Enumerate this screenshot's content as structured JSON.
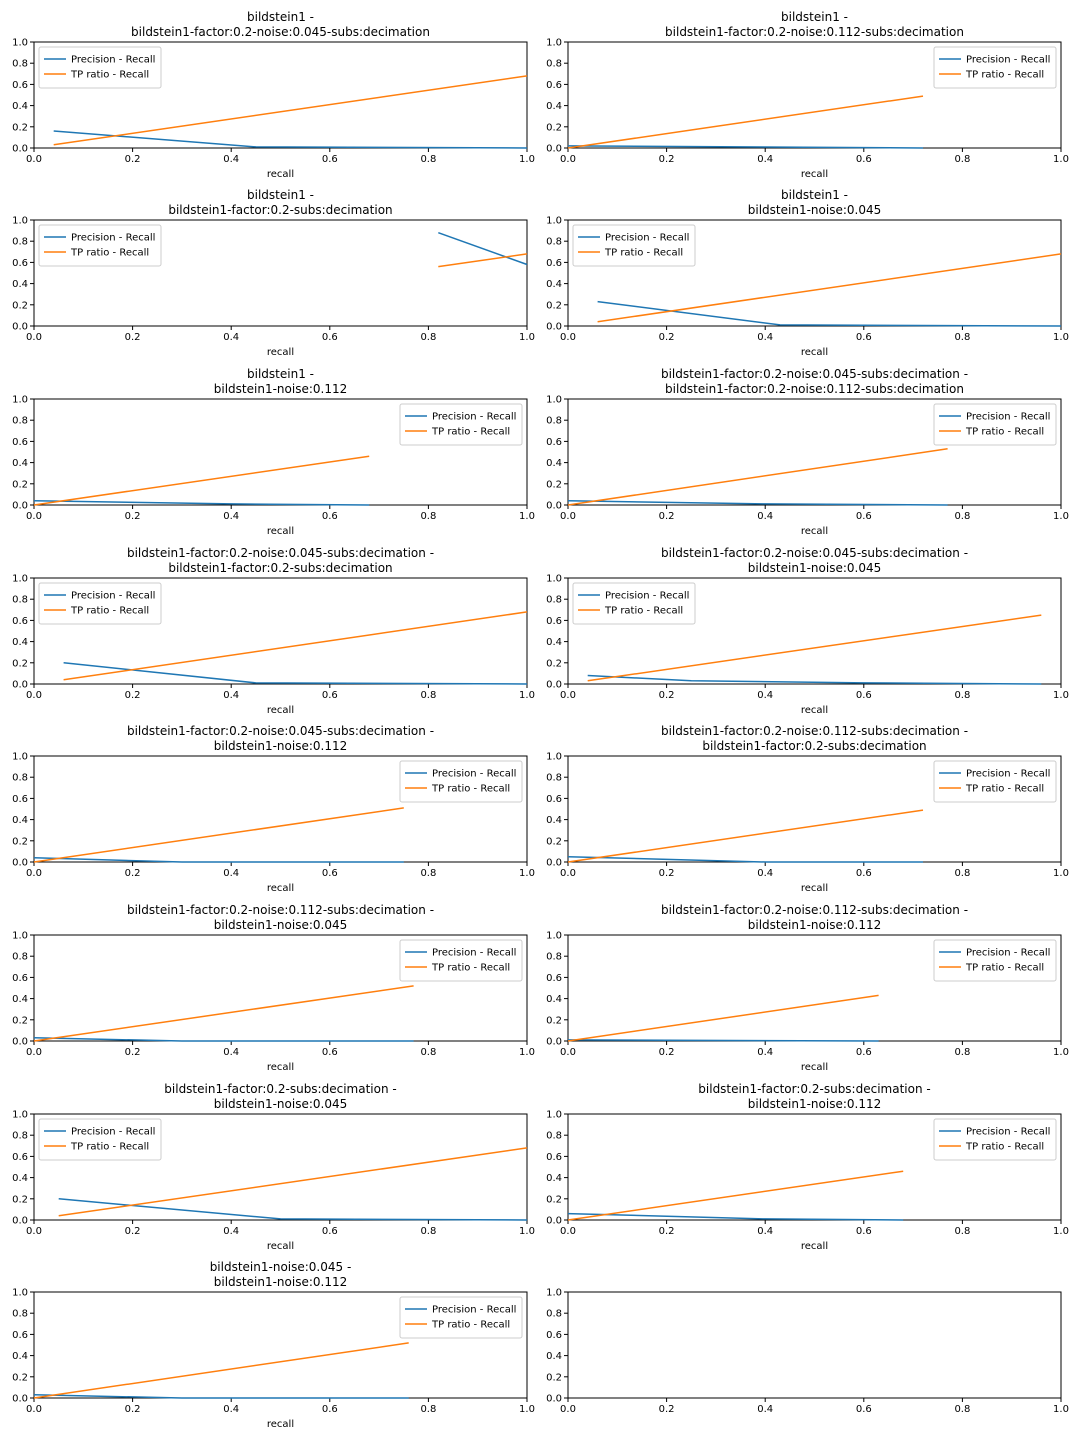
{
  "chart_data": [
    {
      "type": "line",
      "title": [
        "bildstein1 -",
        "bildstein1-factor:0.2-noise:0.045-subs:decimation"
      ],
      "xlabel": "recall",
      "xlim": [
        0,
        1
      ],
      "ylim": [
        0,
        1
      ],
      "xticks": [
        "0.0",
        "0.2",
        "0.4",
        "0.6",
        "0.8",
        "1.0"
      ],
      "yticks": [
        "0.0",
        "0.2",
        "0.4",
        "0.6",
        "0.8",
        "1.0"
      ],
      "legend_loc": "upper-left",
      "series": [
        {
          "name": "Precision - Recall",
          "color": "#1f77b4",
          "points": [
            [
              0.04,
              0.16
            ],
            [
              0.45,
              0.01
            ],
            [
              1.0,
              0.0
            ]
          ]
        },
        {
          "name": "TP ratio - Recall",
          "color": "#ff7f0e",
          "points": [
            [
              0.04,
              0.03
            ],
            [
              1.0,
              0.68
            ]
          ]
        }
      ]
    },
    {
      "type": "line",
      "title": [
        "bildstein1 -",
        "bildstein1-factor:0.2-noise:0.112-subs:decimation"
      ],
      "xlabel": "recall",
      "xlim": [
        0,
        1
      ],
      "ylim": [
        0,
        1
      ],
      "xticks": [
        "0.0",
        "0.2",
        "0.4",
        "0.6",
        "0.8",
        "1.0"
      ],
      "yticks": [
        "0.0",
        "0.2",
        "0.4",
        "0.6",
        "0.8",
        "1.0"
      ],
      "legend_loc": "upper-right",
      "series": [
        {
          "name": "Precision - Recall",
          "color": "#1f77b4",
          "points": [
            [
              0.0,
              0.02
            ],
            [
              0.72,
              0.0
            ]
          ]
        },
        {
          "name": "TP ratio - Recall",
          "color": "#ff7f0e",
          "points": [
            [
              0.0,
              0.0
            ],
            [
              0.72,
              0.49
            ]
          ]
        }
      ]
    },
    {
      "type": "line",
      "title": [
        "bildstein1 -",
        "bildstein1-factor:0.2-subs:decimation"
      ],
      "xlabel": "recall",
      "xlim": [
        0,
        1
      ],
      "ylim": [
        0,
        1
      ],
      "xticks": [
        "0.0",
        "0.2",
        "0.4",
        "0.6",
        "0.8",
        "1.0"
      ],
      "yticks": [
        "0.0",
        "0.2",
        "0.4",
        "0.6",
        "0.8",
        "1.0"
      ],
      "legend_loc": "upper-left",
      "series": [
        {
          "name": "Precision - Recall",
          "color": "#1f77b4",
          "points": [
            [
              0.82,
              0.88
            ],
            [
              1.0,
              0.58
            ]
          ]
        },
        {
          "name": "TP ratio - Recall",
          "color": "#ff7f0e",
          "points": [
            [
              0.82,
              0.56
            ],
            [
              1.0,
              0.68
            ]
          ]
        }
      ]
    },
    {
      "type": "line",
      "title": [
        "bildstein1 -",
        "bildstein1-noise:0.045"
      ],
      "xlabel": "recall",
      "xlim": [
        0,
        1
      ],
      "ylim": [
        0,
        1
      ],
      "xticks": [
        "0.0",
        "0.2",
        "0.4",
        "0.6",
        "0.8",
        "1.0"
      ],
      "yticks": [
        "0.0",
        "0.2",
        "0.4",
        "0.6",
        "0.8",
        "1.0"
      ],
      "legend_loc": "upper-left",
      "series": [
        {
          "name": "Precision - Recall",
          "color": "#1f77b4",
          "points": [
            [
              0.06,
              0.23
            ],
            [
              0.43,
              0.01
            ],
            [
              1.0,
              0.0
            ]
          ]
        },
        {
          "name": "TP ratio - Recall",
          "color": "#ff7f0e",
          "points": [
            [
              0.06,
              0.04
            ],
            [
              1.0,
              0.68
            ]
          ]
        }
      ]
    },
    {
      "type": "line",
      "title": [
        "bildstein1 -",
        "bildstein1-noise:0.112"
      ],
      "xlabel": "recall",
      "xlim": [
        0,
        1
      ],
      "ylim": [
        0,
        1
      ],
      "xticks": [
        "0.0",
        "0.2",
        "0.4",
        "0.6",
        "0.8",
        "1.0"
      ],
      "yticks": [
        "0.0",
        "0.2",
        "0.4",
        "0.6",
        "0.8",
        "1.0"
      ],
      "legend_loc": "upper-right",
      "series": [
        {
          "name": "Precision - Recall",
          "color": "#1f77b4",
          "points": [
            [
              0.0,
              0.04
            ],
            [
              0.4,
              0.01
            ],
            [
              0.68,
              0.0
            ]
          ]
        },
        {
          "name": "TP ratio - Recall",
          "color": "#ff7f0e",
          "points": [
            [
              0.0,
              0.0
            ],
            [
              0.68,
              0.46
            ]
          ]
        }
      ]
    },
    {
      "type": "line",
      "title": [
        "bildstein1-factor:0.2-noise:0.045-subs:decimation -",
        "bildstein1-factor:0.2-noise:0.112-subs:decimation"
      ],
      "xlabel": "recall",
      "xlim": [
        0,
        1
      ],
      "ylim": [
        0,
        1
      ],
      "xticks": [
        "0.0",
        "0.2",
        "0.4",
        "0.6",
        "0.8",
        "1.0"
      ],
      "yticks": [
        "0.0",
        "0.2",
        "0.4",
        "0.6",
        "0.8",
        "1.0"
      ],
      "legend_loc": "upper-right",
      "series": [
        {
          "name": "Precision - Recall",
          "color": "#1f77b4",
          "points": [
            [
              0.0,
              0.04
            ],
            [
              0.4,
              0.01
            ],
            [
              0.77,
              0.0
            ]
          ]
        },
        {
          "name": "TP ratio - Recall",
          "color": "#ff7f0e",
          "points": [
            [
              0.0,
              0.0
            ],
            [
              0.77,
              0.53
            ]
          ]
        }
      ]
    },
    {
      "type": "line",
      "title": [
        "bildstein1-factor:0.2-noise:0.045-subs:decimation -",
        "bildstein1-factor:0.2-subs:decimation"
      ],
      "xlabel": "recall",
      "xlim": [
        0,
        1
      ],
      "ylim": [
        0,
        1
      ],
      "xticks": [
        "0.0",
        "0.2",
        "0.4",
        "0.6",
        "0.8",
        "1.0"
      ],
      "yticks": [
        "0.0",
        "0.2",
        "0.4",
        "0.6",
        "0.8",
        "1.0"
      ],
      "legend_loc": "upper-left",
      "series": [
        {
          "name": "Precision - Recall",
          "color": "#1f77b4",
          "points": [
            [
              0.06,
              0.2
            ],
            [
              0.45,
              0.01
            ],
            [
              1.0,
              0.0
            ]
          ]
        },
        {
          "name": "TP ratio - Recall",
          "color": "#ff7f0e",
          "points": [
            [
              0.06,
              0.04
            ],
            [
              1.0,
              0.68
            ]
          ]
        }
      ]
    },
    {
      "type": "line",
      "title": [
        "bildstein1-factor:0.2-noise:0.045-subs:decimation -",
        "bildstein1-noise:0.045"
      ],
      "xlabel": "recall",
      "xlim": [
        0,
        1
      ],
      "ylim": [
        0,
        1
      ],
      "xticks": [
        "0.0",
        "0.2",
        "0.4",
        "0.6",
        "0.8",
        "1.0"
      ],
      "yticks": [
        "0.0",
        "0.2",
        "0.4",
        "0.6",
        "0.8",
        "1.0"
      ],
      "legend_loc": "upper-left",
      "series": [
        {
          "name": "Precision - Recall",
          "color": "#1f77b4",
          "points": [
            [
              0.04,
              0.08
            ],
            [
              0.25,
              0.03
            ],
            [
              0.6,
              0.01
            ],
            [
              0.96,
              0.0
            ]
          ]
        },
        {
          "name": "TP ratio - Recall",
          "color": "#ff7f0e",
          "points": [
            [
              0.04,
              0.03
            ],
            [
              0.96,
              0.65
            ]
          ]
        }
      ]
    },
    {
      "type": "line",
      "title": [
        "bildstein1-factor:0.2-noise:0.045-subs:decimation -",
        "bildstein1-noise:0.112"
      ],
      "xlabel": "recall",
      "xlim": [
        0,
        1
      ],
      "ylim": [
        0,
        1
      ],
      "xticks": [
        "0.0",
        "0.2",
        "0.4",
        "0.6",
        "0.8",
        "1.0"
      ],
      "yticks": [
        "0.0",
        "0.2",
        "0.4",
        "0.6",
        "0.8",
        "1.0"
      ],
      "legend_loc": "upper-right",
      "series": [
        {
          "name": "Precision - Recall",
          "color": "#1f77b4",
          "points": [
            [
              0.0,
              0.04
            ],
            [
              0.3,
              0.0
            ],
            [
              0.75,
              0.0
            ]
          ]
        },
        {
          "name": "TP ratio - Recall",
          "color": "#ff7f0e",
          "points": [
            [
              0.0,
              0.0
            ],
            [
              0.75,
              0.51
            ]
          ]
        }
      ]
    },
    {
      "type": "line",
      "title": [
        "bildstein1-factor:0.2-noise:0.112-subs:decimation -",
        "bildstein1-factor:0.2-subs:decimation"
      ],
      "xlabel": "recall",
      "xlim": [
        0,
        1
      ],
      "ylim": [
        0,
        1
      ],
      "xticks": [
        "0.0",
        "0.2",
        "0.4",
        "0.6",
        "0.8",
        "1.0"
      ],
      "yticks": [
        "0.0",
        "0.2",
        "0.4",
        "0.6",
        "0.8",
        "1.0"
      ],
      "legend_loc": "upper-right",
      "series": [
        {
          "name": "Precision - Recall",
          "color": "#1f77b4",
          "points": [
            [
              0.0,
              0.05
            ],
            [
              0.4,
              0.0
            ],
            [
              0.72,
              0.0
            ]
          ]
        },
        {
          "name": "TP ratio - Recall",
          "color": "#ff7f0e",
          "points": [
            [
              0.0,
              0.0
            ],
            [
              0.72,
              0.49
            ]
          ]
        }
      ]
    },
    {
      "type": "line",
      "title": [
        "bildstein1-factor:0.2-noise:0.112-subs:decimation -",
        "bildstein1-noise:0.045"
      ],
      "xlabel": "recall",
      "xlim": [
        0,
        1
      ],
      "ylim": [
        0,
        1
      ],
      "xticks": [
        "0.0",
        "0.2",
        "0.4",
        "0.6",
        "0.8",
        "1.0"
      ],
      "yticks": [
        "0.0",
        "0.2",
        "0.4",
        "0.6",
        "0.8",
        "1.0"
      ],
      "legend_loc": "upper-right",
      "series": [
        {
          "name": "Precision - Recall",
          "color": "#1f77b4",
          "points": [
            [
              0.0,
              0.03
            ],
            [
              0.3,
              0.0
            ],
            [
              0.77,
              0.0
            ]
          ]
        },
        {
          "name": "TP ratio - Recall",
          "color": "#ff7f0e",
          "points": [
            [
              0.0,
              0.0
            ],
            [
              0.77,
              0.52
            ]
          ]
        }
      ]
    },
    {
      "type": "line",
      "title": [
        "bildstein1-factor:0.2-noise:0.112-subs:decimation -",
        "bildstein1-noise:0.112"
      ],
      "xlabel": "recall",
      "xlim": [
        0,
        1
      ],
      "ylim": [
        0,
        1
      ],
      "xticks": [
        "0.0",
        "0.2",
        "0.4",
        "0.6",
        "0.8",
        "1.0"
      ],
      "yticks": [
        "0.0",
        "0.2",
        "0.4",
        "0.6",
        "0.8",
        "1.0"
      ],
      "legend_loc": "upper-right",
      "series": [
        {
          "name": "Precision - Recall",
          "color": "#1f77b4",
          "points": [
            [
              0.0,
              0.01
            ],
            [
              0.63,
              0.0
            ]
          ]
        },
        {
          "name": "TP ratio - Recall",
          "color": "#ff7f0e",
          "points": [
            [
              0.0,
              0.0
            ],
            [
              0.63,
              0.43
            ]
          ]
        }
      ]
    },
    {
      "type": "line",
      "title": [
        "bildstein1-factor:0.2-subs:decimation -",
        "bildstein1-noise:0.045"
      ],
      "xlabel": "recall",
      "xlim": [
        0,
        1
      ],
      "ylim": [
        0,
        1
      ],
      "xticks": [
        "0.0",
        "0.2",
        "0.4",
        "0.6",
        "0.8",
        "1.0"
      ],
      "yticks": [
        "0.0",
        "0.2",
        "0.4",
        "0.6",
        "0.8",
        "1.0"
      ],
      "legend_loc": "upper-left",
      "series": [
        {
          "name": "Precision - Recall",
          "color": "#1f77b4",
          "points": [
            [
              0.05,
              0.2
            ],
            [
              0.5,
              0.01
            ],
            [
              1.0,
              0.0
            ]
          ]
        },
        {
          "name": "TP ratio - Recall",
          "color": "#ff7f0e",
          "points": [
            [
              0.05,
              0.04
            ],
            [
              1.0,
              0.68
            ]
          ]
        }
      ]
    },
    {
      "type": "line",
      "title": [
        "bildstein1-factor:0.2-subs:decimation -",
        "bildstein1-noise:0.112"
      ],
      "xlabel": "recall",
      "xlim": [
        0,
        1
      ],
      "ylim": [
        0,
        1
      ],
      "xticks": [
        "0.0",
        "0.2",
        "0.4",
        "0.6",
        "0.8",
        "1.0"
      ],
      "yticks": [
        "0.0",
        "0.2",
        "0.4",
        "0.6",
        "0.8",
        "1.0"
      ],
      "legend_loc": "upper-right",
      "series": [
        {
          "name": "Precision - Recall",
          "color": "#1f77b4",
          "points": [
            [
              0.0,
              0.06
            ],
            [
              0.4,
              0.01
            ],
            [
              0.68,
              0.0
            ]
          ]
        },
        {
          "name": "TP ratio - Recall",
          "color": "#ff7f0e",
          "points": [
            [
              0.0,
              0.0
            ],
            [
              0.68,
              0.46
            ]
          ]
        }
      ]
    },
    {
      "type": "line",
      "title": [
        "bildstein1-noise:0.045 -",
        "bildstein1-noise:0.112"
      ],
      "xlabel": "recall",
      "xlim": [
        0,
        1
      ],
      "ylim": [
        0,
        1
      ],
      "xticks": [
        "0.0",
        "0.2",
        "0.4",
        "0.6",
        "0.8",
        "1.0"
      ],
      "yticks": [
        "0.0",
        "0.2",
        "0.4",
        "0.6",
        "0.8",
        "1.0"
      ],
      "legend_loc": "upper-right",
      "series": [
        {
          "name": "Precision - Recall",
          "color": "#1f77b4",
          "points": [
            [
              0.0,
              0.03
            ],
            [
              0.3,
              0.0
            ],
            [
              0.76,
              0.0
            ]
          ]
        },
        {
          "name": "TP ratio - Recall",
          "color": "#ff7f0e",
          "points": [
            [
              0.0,
              0.0
            ],
            [
              0.76,
              0.52
            ]
          ]
        }
      ]
    },
    {
      "type": "line",
      "title": [],
      "xlabel": "",
      "xlim": [
        0,
        1
      ],
      "ylim": [
        0,
        1
      ],
      "xticks": [
        "0.0",
        "0.2",
        "0.4",
        "0.6",
        "0.8",
        "1.0"
      ],
      "yticks": [
        "0.0",
        "0.2",
        "0.4",
        "0.6",
        "0.8",
        "1.0"
      ],
      "legend_loc": "",
      "series": []
    }
  ]
}
